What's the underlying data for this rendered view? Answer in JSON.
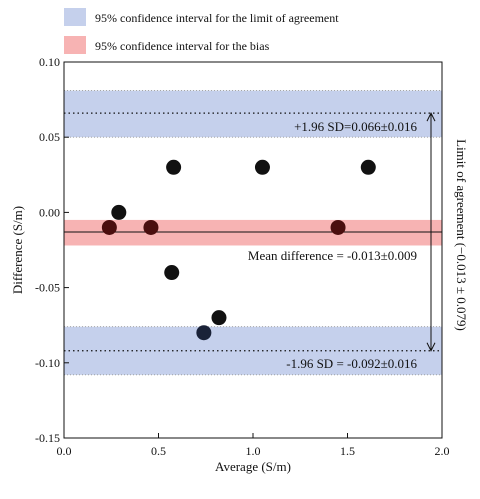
{
  "chart_data": {
    "type": "scatter",
    "title": "",
    "xlabel": "Average (S/m)",
    "ylabel": "Difference (S/m)",
    "right_label": "Limit  of agreement  (−0.013 ± 0.079)",
    "xlim": [
      0.0,
      2.0
    ],
    "ylim": [
      -0.15,
      0.1
    ],
    "xticks": [
      "0.0",
      "0.5",
      "1.0",
      "1.5",
      "2.0"
    ],
    "yticks": [
      "0.10",
      "0.05",
      "0.00",
      "-0.05",
      "-0.10",
      "-0.15"
    ],
    "legend": [
      {
        "label": "95% confidence interval for the limit  of agreement",
        "color": "#c5d0ec"
      },
      {
        "label": "95% confidence interval for the bias",
        "color": "#f7b3b3"
      }
    ],
    "mean_difference": -0.013,
    "upper_loa": 0.066,
    "lower_loa": -0.092,
    "upper_band": [
      0.05,
      0.081
    ],
    "bias_band": [
      -0.022,
      -0.005
    ],
    "lower_band": [
      -0.108,
      -0.076
    ],
    "annotations": {
      "upper": "+1.96 SD=0.066±0.016",
      "mean": "Mean difference = -0.013±0.009",
      "lower": "-1.96 SD = -0.092±0.016"
    },
    "points": [
      {
        "x": 0.24,
        "y": -0.01,
        "color": "#4a0e0e"
      },
      {
        "x": 0.29,
        "y": 0.0,
        "color": "#111111"
      },
      {
        "x": 0.46,
        "y": -0.01,
        "color": "#4a0e0e"
      },
      {
        "x": 0.58,
        "y": 0.03,
        "color": "#111111"
      },
      {
        "x": 0.57,
        "y": -0.04,
        "color": "#111111"
      },
      {
        "x": 0.74,
        "y": -0.08,
        "color": "#1a2238"
      },
      {
        "x": 0.82,
        "y": -0.07,
        "color": "#111111"
      },
      {
        "x": 1.05,
        "y": 0.03,
        "color": "#111111"
      },
      {
        "x": 1.45,
        "y": -0.01,
        "color": "#4a0e0e"
      },
      {
        "x": 1.61,
        "y": 0.03,
        "color": "#111111"
      }
    ],
    "grid": false,
    "legend_position": "top-left"
  }
}
